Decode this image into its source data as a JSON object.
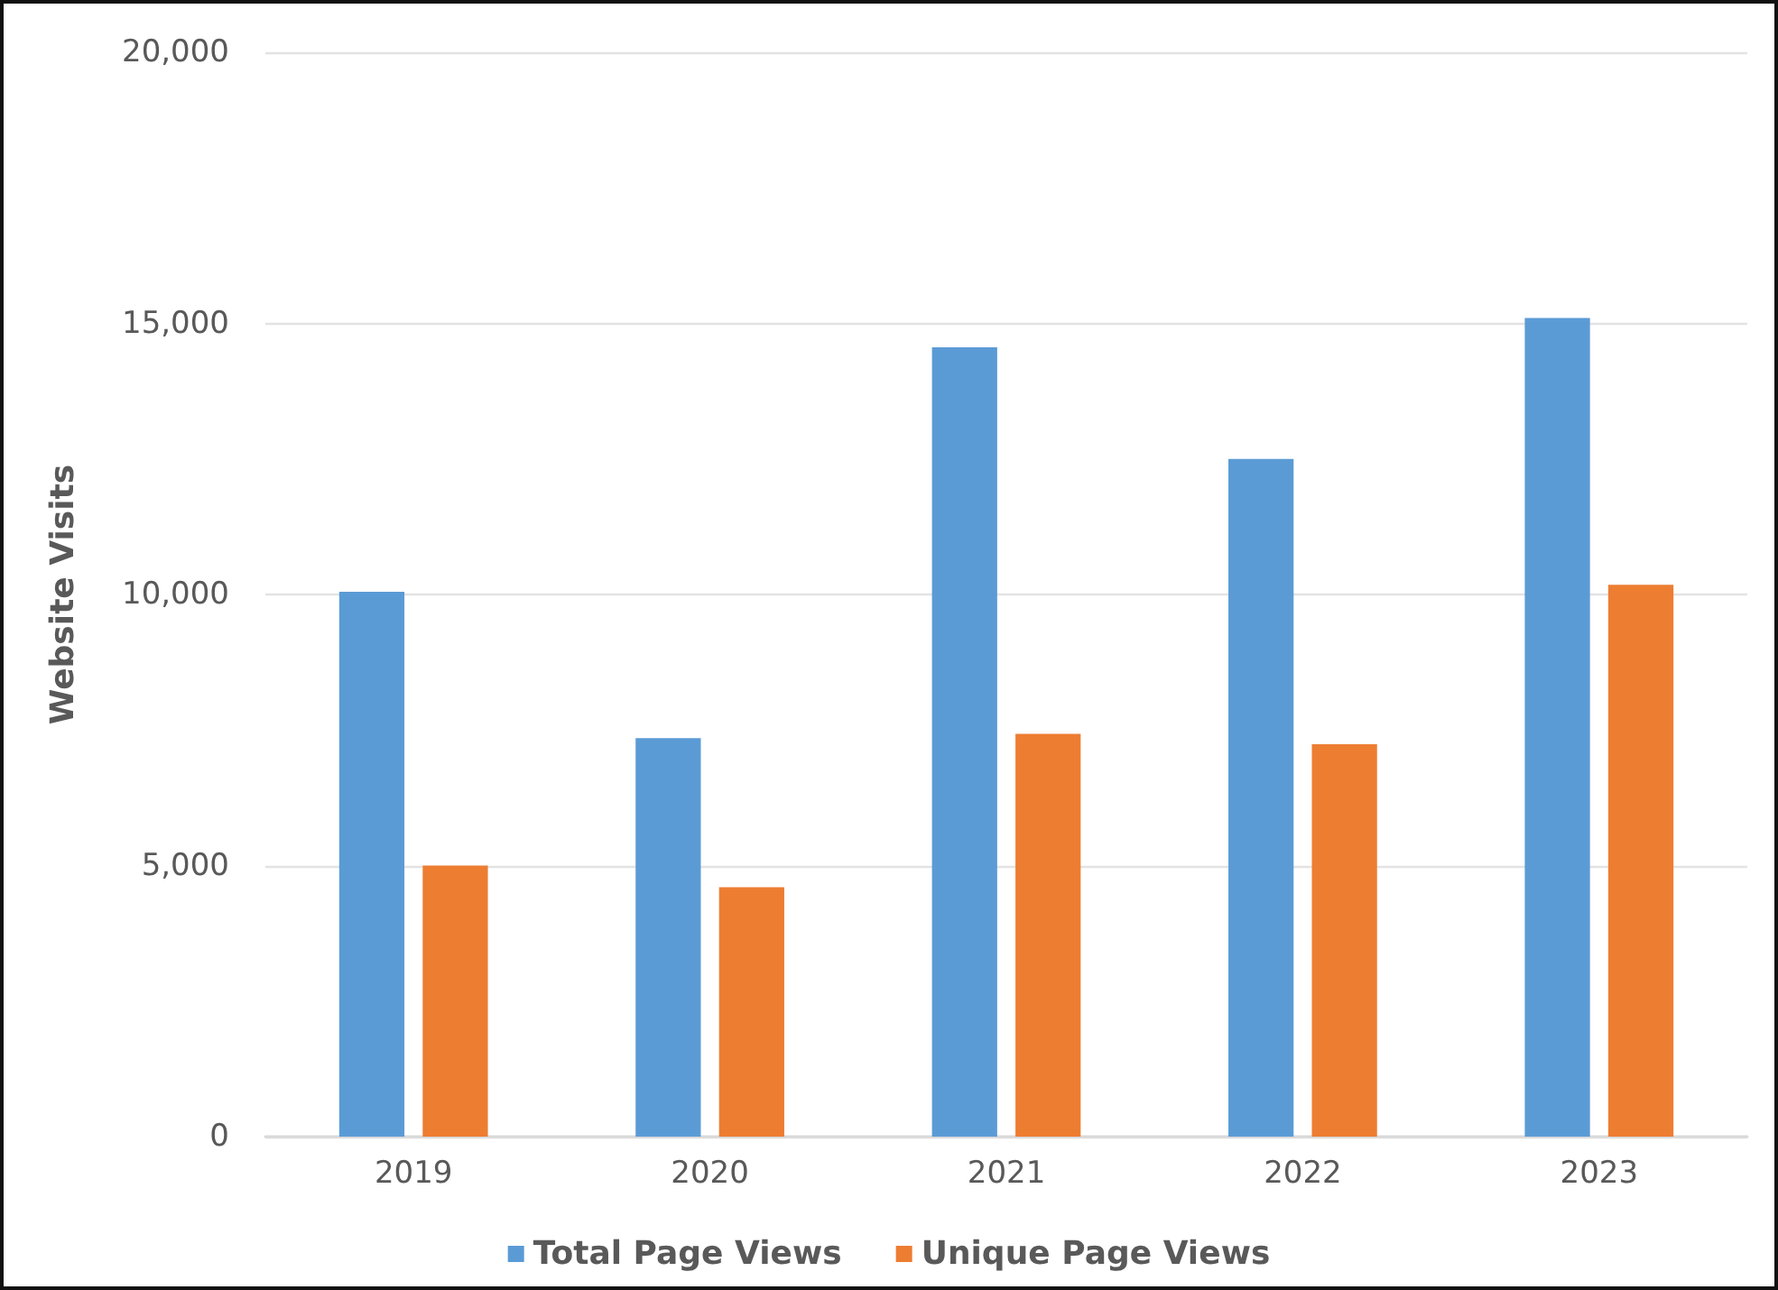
{
  "chart_data": {
    "type": "bar",
    "ylabel": "Website Visits",
    "categories": [
      "2019",
      "2020",
      "2021",
      "2022",
      "2023"
    ],
    "series": [
      {
        "name": "Total Page Views",
        "color": "#5b9bd5",
        "values": [
          10050,
          7350,
          14560,
          12500,
          15100
        ]
      },
      {
        "name": "Unique Page Views",
        "color": "#ed7d31",
        "values": [
          5000,
          4600,
          7430,
          7240,
          10180
        ]
      }
    ],
    "ylim": [
      0,
      20000
    ],
    "yticks": [
      0,
      {
        "value": 5000,
        "label": "5,000"
      },
      {
        "value": 10000,
        "label": "10,000"
      },
      {
        "value": 15000,
        "label": "15,000"
      },
      {
        "value": 20000,
        "label": "20,000"
      }
    ],
    "grid": "y",
    "legend": "bottom"
  }
}
